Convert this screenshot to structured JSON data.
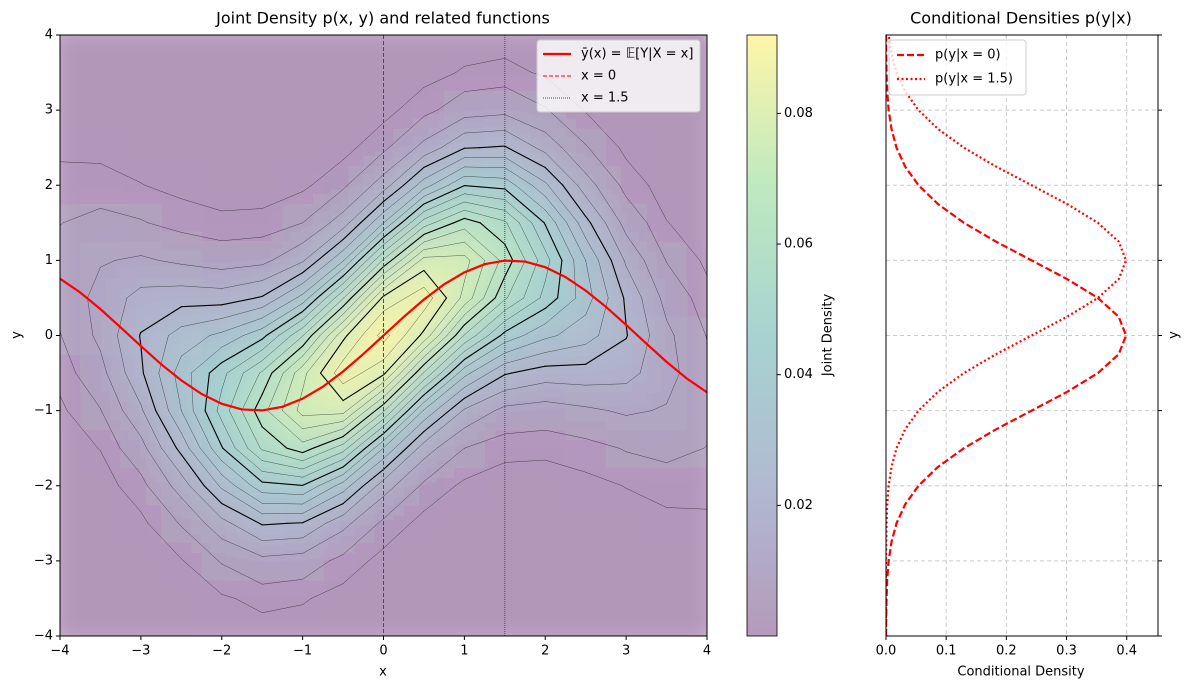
{
  "chart_data": [
    {
      "type": "density",
      "title": "Joint Density p(x, y) and related functions",
      "xlabel": "x",
      "ylabel": "y",
      "xlim": [
        -4,
        4
      ],
      "ylim": [
        -4,
        4
      ],
      "xticks": [
        {
          "value": -4,
          "label": "−4"
        },
        {
          "value": -3,
          "label": "−3"
        },
        {
          "value": -2,
          "label": "−2"
        },
        {
          "value": -1,
          "label": "−1"
        },
        0,
        1,
        2,
        3,
        4
      ],
      "yticks": [
        {
          "value": -4,
          "label": "−4"
        },
        {
          "value": -3,
          "label": "−3"
        },
        {
          "value": -2,
          "label": "−2"
        },
        {
          "value": -1,
          "label": "−1"
        },
        0,
        1,
        2,
        3,
        4
      ],
      "colormap": "viridis",
      "alpha": 0.4,
      "x": [
        -4,
        -3.5,
        -3,
        -2.5,
        -2,
        -1.5,
        -1,
        -0.5,
        0,
        0.5,
        1,
        1.5,
        2,
        2.5,
        3,
        3.5,
        4
      ],
      "y": [
        -4,
        -3.5,
        -3,
        -2.5,
        -2,
        -1.5,
        -1,
        -0.5,
        0,
        0.5,
        1,
        1.5,
        2,
        2.5,
        3,
        3.5,
        4
      ],
      "z": [
        [
          0,
          0,
          0,
          0,
          0.0001,
          0.0005,
          0.0014,
          0.0029,
          0.0048,
          0.0062,
          0.0062,
          0.0049,
          0.003,
          0.0014,
          0.0005,
          0.0001,
          0
        ],
        [
          0,
          0,
          0,
          0.0002,
          0.0007,
          0.0021,
          0.0048,
          0.0083,
          0.0112,
          0.0118,
          0.0096,
          0.0062,
          0.0031,
          0.0012,
          0.0004,
          0.0001,
          0
        ],
        [
          0,
          0.0001,
          0.0003,
          0.0013,
          0.0036,
          0.0081,
          0.0142,
          0.0192,
          0.0203,
          0.0167,
          0.0107,
          0.0053,
          0.0021,
          0.0006,
          0.0001,
          0,
          0
        ],
        [
          0.0001,
          0.0005,
          0.0018,
          0.0053,
          0.0122,
          0.0216,
          0.03,
          0.0323,
          0.0272,
          0.0178,
          0.0091,
          0.0036,
          0.0011,
          0.0003,
          0,
          0,
          0
        ],
        [
          0.0004,
          0.0016,
          0.0053,
          0.0133,
          0.026,
          0.0396,
          0.047,
          0.0434,
          0.0312,
          0.0175,
          0.0076,
          0.0026,
          0.0007,
          0.0001,
          0,
          0,
          0
        ],
        [
          0.0007,
          0.0028,
          0.0086,
          0.0205,
          0.0383,
          0.0558,
          0.0632,
          0.0558,
          0.0383,
          0.0205,
          0.0086,
          0.0028,
          0.0007,
          0.0001,
          0,
          0,
          0
        ],
        [
          0.0005,
          0.0023,
          0.0076,
          0.0197,
          0.0398,
          0.0627,
          0.0769,
          0.0735,
          0.0547,
          0.0317,
          0.0143,
          0.005,
          0.0014,
          0.0003,
          0,
          0,
          0
        ],
        [
          0.0002,
          0.0009,
          0.0037,
          0.0115,
          0.0277,
          0.0524,
          0.077,
          0.0882,
          0.0787,
          0.0546,
          0.0295,
          0.0124,
          0.0041,
          0.001,
          0.0002,
          0,
          0
        ],
        [
          0,
          0.0002,
          0.001,
          0.004,
          0.0124,
          0.0299,
          0.0558,
          0.0812,
          0.092,
          0.0812,
          0.0558,
          0.0299,
          0.0124,
          0.004,
          0.001,
          0.0002,
          0
        ],
        [
          0,
          0,
          0.0002,
          0.001,
          0.0041,
          0.0124,
          0.0295,
          0.0546,
          0.0787,
          0.0882,
          0.077,
          0.0524,
          0.0277,
          0.0115,
          0.0037,
          0.0009,
          0.0002
        ],
        [
          0,
          0,
          0,
          0.0003,
          0.0014,
          0.005,
          0.0143,
          0.0317,
          0.0547,
          0.0735,
          0.0769,
          0.0627,
          0.0398,
          0.0197,
          0.0076,
          0.0023,
          0.0005
        ],
        [
          0,
          0,
          0,
          0.0001,
          0.0007,
          0.0028,
          0.0086,
          0.0205,
          0.0383,
          0.0558,
          0.0632,
          0.0558,
          0.0383,
          0.0205,
          0.0086,
          0.0028,
          0.0007
        ],
        [
          0,
          0,
          0,
          0.0001,
          0.0007,
          0.0026,
          0.0076,
          0.0175,
          0.0312,
          0.0434,
          0.047,
          0.0396,
          0.026,
          0.0133,
          0.0053,
          0.0016,
          0.0004
        ],
        [
          0,
          0,
          0,
          0.0003,
          0.0011,
          0.0036,
          0.0091,
          0.0178,
          0.0272,
          0.0323,
          0.03,
          0.0216,
          0.0122,
          0.0053,
          0.0018,
          0.0005,
          0.0001
        ],
        [
          0,
          0,
          0.0001,
          0.0006,
          0.0021,
          0.0053,
          0.0107,
          0.0167,
          0.0203,
          0.0192,
          0.0142,
          0.0081,
          0.0036,
          0.0013,
          0.0003,
          0.0001,
          0
        ],
        [
          0,
          0.0001,
          0.0004,
          0.0012,
          0.0031,
          0.0062,
          0.0096,
          0.0118,
          0.0112,
          0.0083,
          0.0048,
          0.0021,
          0.0007,
          0.0002,
          0,
          0,
          0
        ],
        [
          0,
          0.0001,
          0.0005,
          0.0014,
          0.003,
          0.0049,
          0.0062,
          0.0062,
          0.0048,
          0.0029,
          0.0014,
          0.0005,
          0.0001,
          0,
          0,
          0,
          0
        ]
      ],
      "contour_levels": [
        0.002,
        0.005,
        0.01,
        0.015,
        0.025,
        0.03,
        0.035,
        0.045,
        0.05,
        0.055,
        0.065,
        0.07,
        0.075,
        0.085,
        0.09
      ],
      "contour_bold_levels": [
        0.02,
        0.04,
        0.06,
        0.08
      ],
      "colorbar": {
        "label": "Joint Density",
        "lim": [
          0,
          0.092
        ],
        "ticks": [
          0.02,
          0.04,
          0.06,
          0.08
        ]
      },
      "lines": [
        {
          "name": "ȳ(x) = 𝔼[Y|X = x]",
          "color": "#ff0000",
          "x": [
            -4,
            -3.75,
            -3.5,
            -3.25,
            -3,
            -2.75,
            -2.5,
            -2.25,
            -2,
            -1.75,
            -1.5,
            -1.25,
            -1,
            -0.75,
            -0.5,
            -0.25,
            0,
            0.25,
            0.5,
            0.75,
            1,
            1.25,
            1.5,
            1.75,
            2,
            2.25,
            2.5,
            2.75,
            3,
            3.25,
            3.5,
            3.75,
            4
          ],
          "values": [
            0.757,
            0.572,
            0.351,
            0.108,
            -0.141,
            -0.382,
            -0.598,
            -0.778,
            -0.909,
            -0.984,
            -0.997,
            -0.949,
            -0.841,
            -0.682,
            -0.479,
            -0.247,
            0,
            0.247,
            0.479,
            0.682,
            0.841,
            0.949,
            0.997,
            0.984,
            0.909,
            0.778,
            0.598,
            0.382,
            0.141,
            -0.108,
            -0.351,
            -0.572,
            -0.757
          ]
        }
      ],
      "vlines": [
        {
          "name": "x = 0",
          "x": 0,
          "color": "#ff0000",
          "style": "dashed"
        },
        {
          "name": "x = 1.5",
          "x": 1.5,
          "color": "#ff0000",
          "style": "dotted"
        }
      ],
      "legend": "upper right"
    },
    {
      "type": "conditional",
      "title": "Conditional Densities p(y|x)",
      "xlabel": "Conditional Density",
      "ylabel": "y",
      "xlim": [
        0,
        0.452
      ],
      "ylim": [
        -4,
        4
      ],
      "xticks": [
        {
          "value": 0,
          "label": "0.0"
        },
        0.1,
        0.2,
        0.3,
        0.4
      ],
      "yticks": [
        -4,
        -3,
        -2,
        -1,
        0,
        1,
        2,
        3,
        4
      ],
      "grid": true,
      "legend": "upper left",
      "y": [
        -4,
        -3.75,
        -3.5,
        -3.25,
        -3,
        -2.75,
        -2.5,
        -2.25,
        -2,
        -1.75,
        -1.5,
        -1.25,
        -1,
        -0.75,
        -0.5,
        -0.25,
        0,
        0.25,
        0.5,
        0.75,
        1,
        1.25,
        1.5,
        1.75,
        2,
        2.25,
        2.5,
        2.75,
        3,
        3.25,
        3.5,
        3.75,
        4
      ],
      "series": [
        {
          "name": "p(y|x = 0)",
          "color": "#ff0000",
          "style": "dashed",
          "values": [
            0.0001,
            0.0004,
            0.0009,
            0.002,
            0.0044,
            0.0091,
            0.0175,
            0.0317,
            0.054,
            0.0863,
            0.1295,
            0.1826,
            0.242,
            0.3011,
            0.3521,
            0.3867,
            0.3989,
            0.3867,
            0.3521,
            0.3011,
            0.242,
            0.1826,
            0.1295,
            0.0863,
            0.054,
            0.0317,
            0.0175,
            0.0091,
            0.0044,
            0.002,
            0.0009,
            0.0004,
            0.0001
          ]
        },
        {
          "name": "p(y|x = 1.5)",
          "color": "#ff0000",
          "style": "dotted",
          "values": [
            0,
            0,
            0,
            0.0001,
            0.0001,
            0.0004,
            0.0009,
            0.002,
            0.0044,
            0.0091,
            0.0175,
            0.0317,
            0.054,
            0.0863,
            0.1295,
            0.1826,
            0.242,
            0.3011,
            0.3521,
            0.3867,
            0.3989,
            0.3867,
            0.3521,
            0.3011,
            0.242,
            0.1826,
            0.1295,
            0.0863,
            0.054,
            0.0317,
            0.0175,
            0.0091,
            0.0044
          ]
        }
      ]
    }
  ]
}
